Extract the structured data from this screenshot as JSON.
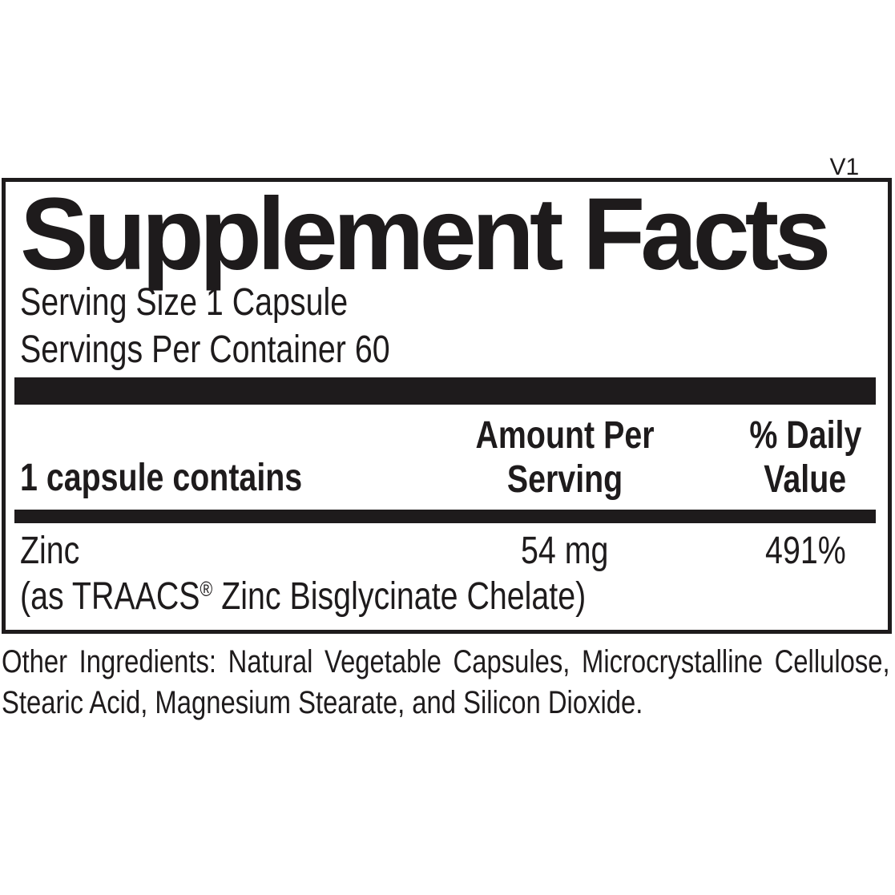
{
  "colors": {
    "ink": "#1e1b1c",
    "paper": "#ffffff"
  },
  "panel": {
    "title": "Supplement Facts",
    "version_superscript": "V1",
    "serving_size": "Serving Size 1 Capsule",
    "servings_per_container": "Servings Per Container 60",
    "table": {
      "header": {
        "col1": "1 capsule contains",
        "col2_line1": "Amount Per",
        "col2_line2": "Serving",
        "col3_line1": "% Daily",
        "col3_line2": "Value"
      },
      "rows": [
        {
          "ingredient": "Zinc",
          "amount": "54 mg",
          "daily_value": "491%",
          "source_prefix": "(as TRAACS",
          "source_reg": "®",
          "source_suffix": " Zinc Bisglycinate Chelate)"
        }
      ]
    }
  },
  "other_ingredients": "Other Ingredients: Natural Vegetable Capsules, Microcrystalline Cellulose, Stearic Acid, Magnesium Stearate, and Silicon Dioxide."
}
